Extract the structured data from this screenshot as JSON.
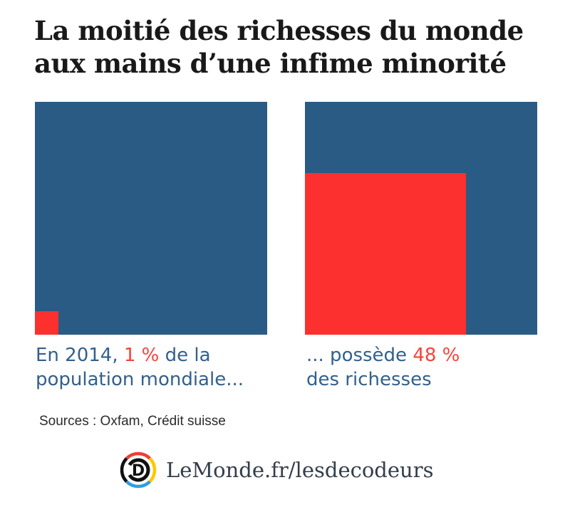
{
  "title": {
    "line1": "La moitié des richesses du monde",
    "line2": "aux mains d’une infime minorité"
  },
  "chart_data": {
    "type": "area",
    "subtype": "proportional-square-comparison",
    "title": "La moitié des richesses du monde aux mains d'une infime minorité",
    "series": [
      {
        "name": "population",
        "value_pct": 1,
        "of_total_pct": 100,
        "caption": "En 2014, 1 % de la population mondiale..."
      },
      {
        "name": "richesses",
        "value_pct": 48,
        "of_total_pct": 100,
        "caption": "... possède 48 % des richesses"
      }
    ],
    "legend_position": "none",
    "grid": false
  },
  "panels": [
    {
      "caption": {
        "pre": "En 2014, ",
        "highlight": "1 %",
        "post": " de la",
        "line2": "population mondiale..."
      }
    },
    {
      "caption": {
        "pre": "... possède ",
        "highlight": "48 %",
        "post": "",
        "line2": "des richesses"
      }
    }
  ],
  "sources": {
    "label": "Sources : Oxfam, Crédit suisse"
  },
  "footer": {
    "brand": "LeMonde.fr/lesdecodeurs",
    "logo_letter": "D"
  },
  "colors": {
    "square_blue": "#2a5b85",
    "square_red": "#fc302e",
    "caption_blue": "#33608c",
    "caption_red": "#f8423a",
    "title_color": "#191919",
    "sources_color": "#2b2b2b",
    "footer_text": "#333e4d",
    "logo_red": "#ef3e33",
    "logo_yellow": "#fdc800",
    "logo_blue": "#2e9fe0",
    "logo_black": "#111111"
  }
}
